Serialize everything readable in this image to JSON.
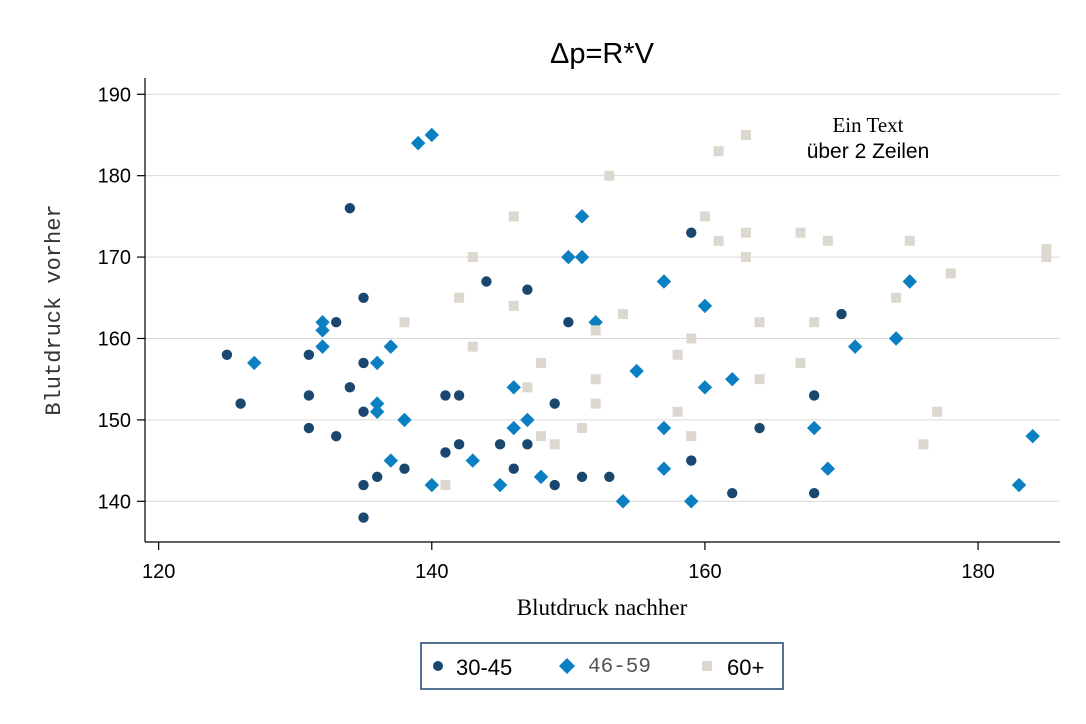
{
  "chart_data": {
    "type": "scatter",
    "title": "Δp=R*V",
    "xlabel": "Blutdruck nachher",
    "ylabel": "Blutdruck vorher",
    "xlim": [
      119,
      186
    ],
    "ylim": [
      135,
      192
    ],
    "xticks": [
      "120",
      "140",
      "160",
      "180"
    ],
    "yticks": [
      "140",
      "150",
      "160",
      "170",
      "180",
      "190"
    ],
    "grid": true,
    "legend_position": "bottom",
    "annotation": [
      "Ein Text",
      "über  2 Zeilen"
    ],
    "series": [
      {
        "name": "30-45",
        "color": "#1a476f",
        "marker": "circle",
        "points": [
          [
            125,
            158
          ],
          [
            126,
            152
          ],
          [
            131,
            158
          ],
          [
            131,
            153
          ],
          [
            131,
            149
          ],
          [
            133,
            162
          ],
          [
            133,
            148
          ],
          [
            134,
            176
          ],
          [
            134,
            154
          ],
          [
            135,
            165
          ],
          [
            135,
            157
          ],
          [
            135,
            151
          ],
          [
            135,
            142
          ],
          [
            135,
            138
          ],
          [
            136,
            143
          ],
          [
            138,
            144
          ],
          [
            141,
            153
          ],
          [
            141,
            146
          ],
          [
            142,
            153
          ],
          [
            142,
            147
          ],
          [
            144,
            167
          ],
          [
            145,
            147
          ],
          [
            146,
            144
          ],
          [
            147,
            166
          ],
          [
            147,
            147
          ],
          [
            149,
            152
          ],
          [
            149,
            142
          ],
          [
            150,
            162
          ],
          [
            151,
            143
          ],
          [
            153,
            143
          ],
          [
            159,
            173
          ],
          [
            159,
            145
          ],
          [
            162,
            141
          ],
          [
            164,
            149
          ],
          [
            168,
            153
          ],
          [
            168,
            141
          ],
          [
            170,
            163
          ]
        ]
      },
      {
        "name": "46-59",
        "color": "#0a7fc1",
        "marker": "diamond",
        "points": [
          [
            127,
            157
          ],
          [
            132,
            162
          ],
          [
            132,
            161
          ],
          [
            132,
            159
          ],
          [
            136,
            157
          ],
          [
            136,
            152
          ],
          [
            136,
            151
          ],
          [
            137,
            159
          ],
          [
            137,
            145
          ],
          [
            138,
            150
          ],
          [
            139,
            184
          ],
          [
            140,
            185
          ],
          [
            140,
            142
          ],
          [
            143,
            145
          ],
          [
            145,
            142
          ],
          [
            146,
            154
          ],
          [
            146,
            149
          ],
          [
            147,
            150
          ],
          [
            148,
            143
          ],
          [
            150,
            170
          ],
          [
            151,
            175
          ],
          [
            151,
            170
          ],
          [
            152,
            162
          ],
          [
            154,
            140
          ],
          [
            155,
            156
          ],
          [
            157,
            167
          ],
          [
            157,
            149
          ],
          [
            157,
            144
          ],
          [
            159,
            140
          ],
          [
            160,
            164
          ],
          [
            160,
            154
          ],
          [
            162,
            155
          ],
          [
            168,
            149
          ],
          [
            169,
            144
          ],
          [
            171,
            159
          ],
          [
            174,
            160
          ],
          [
            175,
            167
          ],
          [
            183,
            142
          ],
          [
            184,
            148
          ]
        ]
      },
      {
        "name": "60+",
        "color": "#dcd8cf",
        "marker": "square",
        "points": [
          [
            138,
            162
          ],
          [
            141,
            142
          ],
          [
            142,
            165
          ],
          [
            143,
            170
          ],
          [
            143,
            159
          ],
          [
            146,
            175
          ],
          [
            146,
            164
          ],
          [
            147,
            154
          ],
          [
            148,
            157
          ],
          [
            148,
            148
          ],
          [
            149,
            147
          ],
          [
            151,
            149
          ],
          [
            152,
            161
          ],
          [
            152,
            155
          ],
          [
            152,
            152
          ],
          [
            153,
            180
          ],
          [
            154,
            163
          ],
          [
            158,
            158
          ],
          [
            158,
            151
          ],
          [
            159,
            160
          ],
          [
            159,
            148
          ],
          [
            160,
            175
          ],
          [
            161,
            183
          ],
          [
            161,
            172
          ],
          [
            163,
            185
          ],
          [
            163,
            173
          ],
          [
            163,
            170
          ],
          [
            164,
            162
          ],
          [
            164,
            155
          ],
          [
            167,
            173
          ],
          [
            167,
            157
          ],
          [
            168,
            162
          ],
          [
            169,
            172
          ],
          [
            174,
            165
          ],
          [
            175,
            172
          ],
          [
            176,
            147
          ],
          [
            177,
            151
          ],
          [
            178,
            168
          ],
          [
            185,
            171
          ],
          [
            185,
            170
          ]
        ]
      }
    ]
  }
}
